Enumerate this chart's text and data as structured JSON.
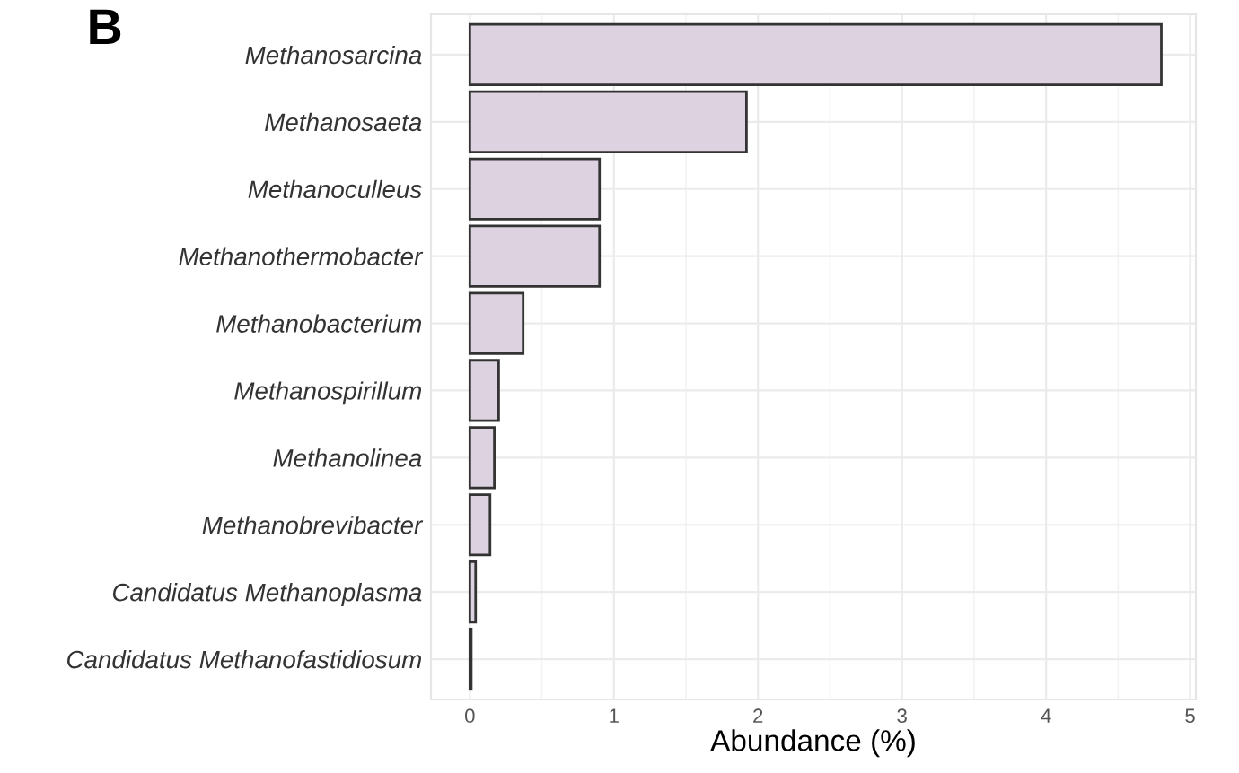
{
  "chart_data": {
    "type": "bar",
    "orientation": "horizontal",
    "xlabel": "Abundance (%)",
    "annotations": [
      "B"
    ],
    "categories": [
      "Methanosarcina",
      "Methanosaeta",
      "Methanoculleus",
      "Methanothermobacter",
      "Methanobacterium",
      "Methanospirillum",
      "Methanolinea",
      "Methanobrevibacter",
      "Candidatus Methanoplasma",
      "Candidatus Methanofastidiosum"
    ],
    "values": [
      4.8,
      1.92,
      0.9,
      0.9,
      0.37,
      0.2,
      0.17,
      0.14,
      0.04,
      0.01
    ],
    "color": "#ddd2df",
    "xlim": [
      -0.27,
      5.04
    ],
    "xticks": [
      0,
      1,
      2,
      3,
      4,
      5
    ],
    "grid": true,
    "legend": false
  }
}
